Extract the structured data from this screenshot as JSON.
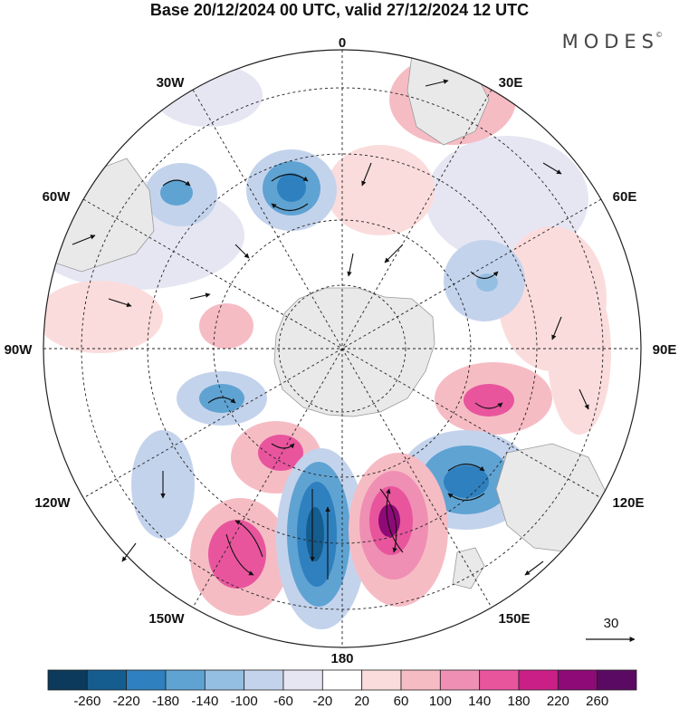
{
  "title": "Base 20/12/2024 00 UTC, valid 27/12/2024 12 UTC",
  "brand": "MODES",
  "brand_mark": "©",
  "longitude_labels": {
    "top": "0",
    "upper_left": "30W",
    "upper_right": "30E",
    "left_upper": "60W",
    "right_upper": "60E",
    "left": "90W",
    "right": "90E",
    "left_lower": "120W",
    "right_lower": "120E",
    "lower_left": "150W",
    "lower_right": "150E",
    "bottom": "180"
  },
  "reference_vector": {
    "label": "30"
  },
  "colorbar": {
    "colors": [
      "#0b3a5c",
      "#155d8f",
      "#2f80bf",
      "#5fa3d3",
      "#95bfe2",
      "#c4d3ec",
      "#e6e6f3",
      "#ffffff",
      "#fbdcdc",
      "#f6bcc4",
      "#ef8fb3",
      "#e8559d",
      "#c91f87",
      "#8e0a76",
      "#5a0a63"
    ],
    "ticks": [
      "-260",
      "-220",
      "-180",
      "-140",
      "-100",
      "-60",
      "-20",
      "20",
      "60",
      "100",
      "140",
      "180",
      "220",
      "260"
    ]
  }
}
